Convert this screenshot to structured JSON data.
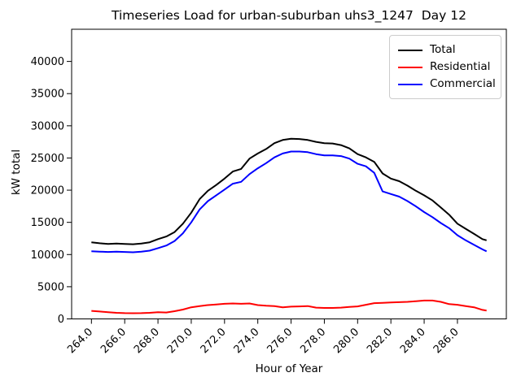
{
  "chart_data": {
    "type": "line",
    "title": "Timeseries Load for urban-suburban uhs3_1247  Day 12",
    "xlabel": "Hour of Year",
    "ylabel": "kW total",
    "xlim": [
      262.81,
      288.94
    ],
    "ylim": [
      0,
      45000
    ],
    "grid": false,
    "legend_position": "upper right",
    "x_ticks": {
      "values": [
        264,
        266,
        268,
        270,
        272,
        274,
        276,
        278,
        280,
        282,
        284,
        286
      ],
      "labels": [
        "264.0",
        "266.0",
        "268.0",
        "270.0",
        "272.0",
        "274.0",
        "276.0",
        "278.0",
        "280.0",
        "282.0",
        "284.0",
        "286.0"
      ]
    },
    "y_ticks": {
      "values": [
        0,
        5000,
        10000,
        15000,
        20000,
        25000,
        30000,
        35000,
        40000
      ],
      "labels": [
        "0",
        "5000",
        "10000",
        "15000",
        "20000",
        "25000",
        "30000",
        "35000",
        "40000"
      ]
    },
    "x": [
      264.0,
      264.5,
      265.0,
      265.5,
      266.0,
      266.5,
      267.0,
      267.5,
      268.0,
      268.5,
      269.0,
      269.5,
      270.0,
      270.5,
      271.0,
      271.5,
      272.0,
      272.5,
      273.0,
      273.5,
      274.0,
      274.5,
      275.0,
      275.5,
      276.0,
      276.5,
      277.0,
      277.5,
      278.0,
      278.5,
      279.0,
      279.5,
      280.0,
      280.5,
      281.0,
      281.5,
      282.0,
      282.5,
      283.0,
      283.5,
      284.0,
      284.5,
      285.0,
      285.5,
      286.0,
      286.5,
      287.0,
      287.5,
      287.75
    ],
    "series": [
      {
        "name": "Total",
        "color": "#000000",
        "values": [
          11900,
          11750,
          11650,
          11700,
          11650,
          11600,
          11700,
          11900,
          12400,
          12800,
          13500,
          14800,
          16500,
          18600,
          19900,
          20800,
          21800,
          22900,
          23300,
          24900,
          25700,
          26400,
          27300,
          27800,
          28000,
          27950,
          27800,
          27500,
          27300,
          27250,
          27000,
          26500,
          25600,
          25100,
          24400,
          22600,
          21800,
          21400,
          20700,
          19900,
          19200,
          18400,
          17300,
          16200,
          14800,
          14000,
          13200,
          12400,
          12200
        ]
      },
      {
        "name": "Residential",
        "color": "#ff0000",
        "values": [
          1250,
          1150,
          1050,
          950,
          900,
          880,
          900,
          950,
          1050,
          1000,
          1200,
          1450,
          1800,
          2000,
          2150,
          2250,
          2350,
          2400,
          2350,
          2400,
          2150,
          2050,
          2000,
          1800,
          1900,
          1950,
          2000,
          1750,
          1700,
          1700,
          1750,
          1850,
          1950,
          2200,
          2450,
          2500,
          2550,
          2600,
          2650,
          2750,
          2850,
          2850,
          2650,
          2300,
          2200,
          2000,
          1800,
          1400,
          1300
        ]
      },
      {
        "name": "Commercial",
        "color": "#0000ff",
        "values": [
          10500,
          10450,
          10400,
          10450,
          10400,
          10350,
          10450,
          10600,
          11000,
          11400,
          12100,
          13300,
          15000,
          17000,
          18300,
          19200,
          20100,
          21000,
          21300,
          22500,
          23400,
          24200,
          25100,
          25700,
          26000,
          26000,
          25900,
          25600,
          25400,
          25400,
          25300,
          24900,
          24100,
          23700,
          22700,
          19800,
          19400,
          19000,
          18300,
          17500,
          16600,
          15800,
          14900,
          14100,
          13000,
          12200,
          11500,
          10800,
          10500
        ]
      }
    ]
  }
}
